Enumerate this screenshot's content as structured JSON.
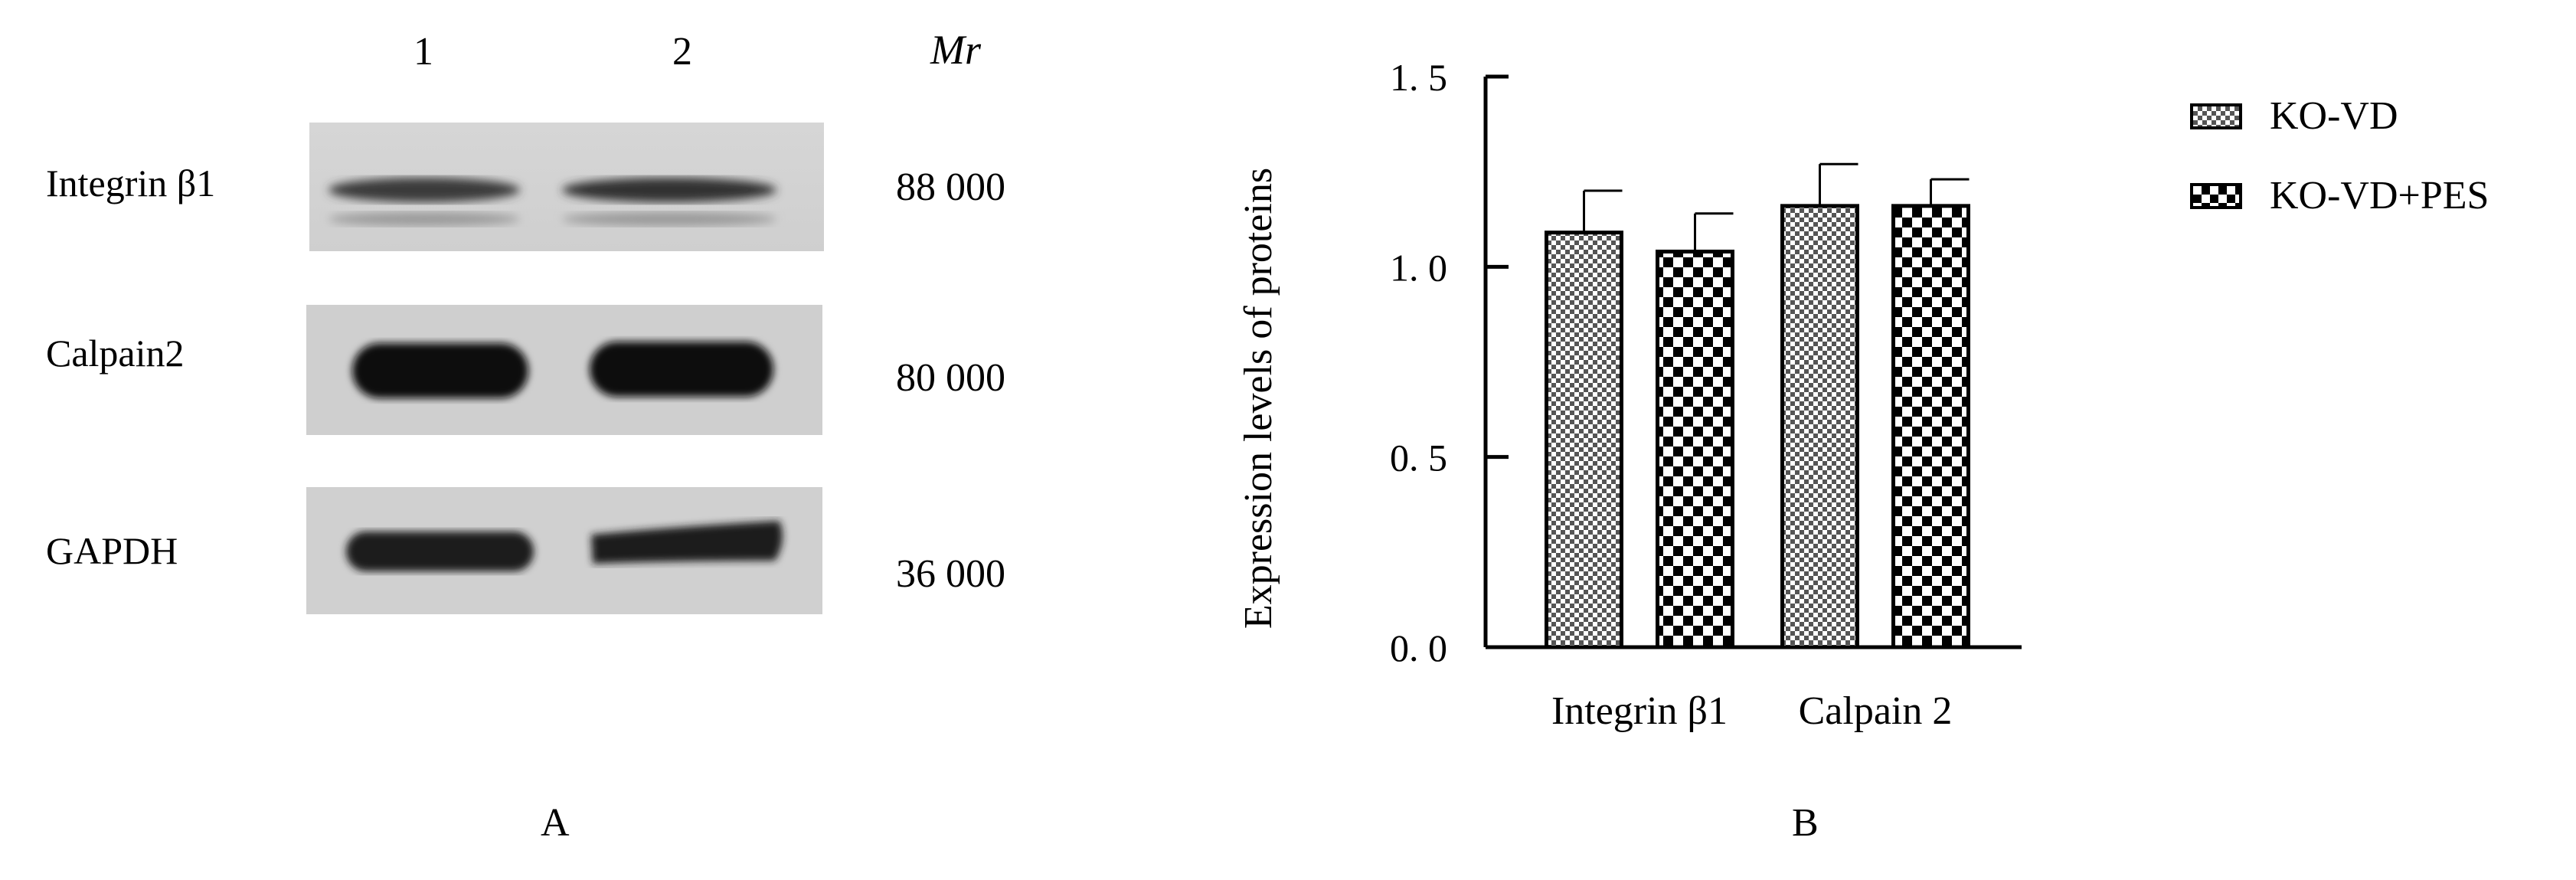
{
  "panel_a": {
    "lane_labels": [
      "1",
      "2"
    ],
    "mr_header": "Mr",
    "proteins": [
      {
        "name": "Integrin β1",
        "mr": "88 000"
      },
      {
        "name": "Calpain2",
        "mr": "80 000"
      },
      {
        "name": "GAPDH",
        "mr": "36 000"
      }
    ],
    "panel_label": "A"
  },
  "panel_b": {
    "panel_label": "B"
  },
  "chart_data": {
    "type": "bar",
    "categories": [
      "Integrin β1",
      "Calpain 2"
    ],
    "series": [
      {
        "name": "KO-VD",
        "values": [
          1.09,
          1.16
        ],
        "errors": [
          0.11,
          0.11
        ],
        "pattern": "fine-check"
      },
      {
        "name": "KO-VD+PES",
        "values": [
          1.04,
          1.16
        ],
        "errors": [
          0.1,
          0.07
        ],
        "pattern": "coarse-check"
      }
    ],
    "ylabel": "Expression levels of proteins",
    "xlabel": "",
    "ylim": [
      0,
      1.5
    ],
    "yticks": [
      "0. 0",
      "0. 5",
      "1. 0",
      "1. 5"
    ],
    "ytick_values": [
      0,
      0.5,
      1.0,
      1.5
    ],
    "legend_position": "top-right",
    "grid": false
  }
}
